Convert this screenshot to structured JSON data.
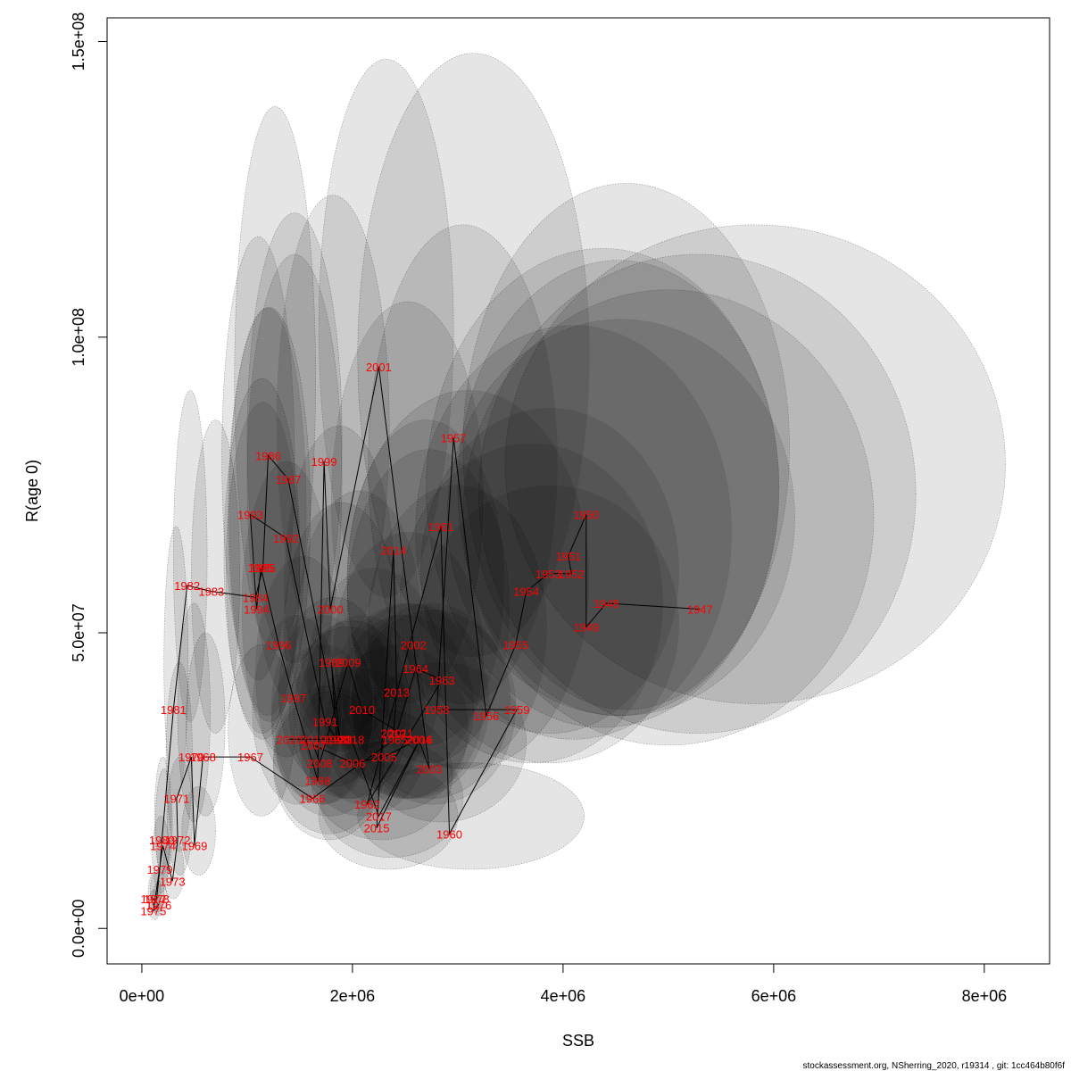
{
  "chart_data": {
    "type": "scatter",
    "xlabel": "SSB",
    "ylabel": "R(age 0)",
    "xlim": [
      -330000,
      8620000
    ],
    "ylim": [
      -6000000,
      154000000
    ],
    "x_ticks": [
      {
        "value": 0,
        "label": "0e+00"
      },
      {
        "value": 2000000,
        "label": "2e+06"
      },
      {
        "value": 4000000,
        "label": "4e+06"
      },
      {
        "value": 6000000,
        "label": "6e+06"
      },
      {
        "value": 8000000,
        "label": "8e+06"
      }
    ],
    "y_ticks": [
      {
        "value": 0,
        "label": "0.0e+00"
      },
      {
        "value": 50000000,
        "label": "5.0e+07"
      },
      {
        "value": 100000000,
        "label": "1.0e+08"
      },
      {
        "value": 150000000,
        "label": "1.5e+08"
      }
    ],
    "colors": {
      "point_label": "#ff0000",
      "trajectory": "#000000",
      "ellipse_fill": "#000000",
      "ellipse_stroke": "#555555"
    },
    "ellipse_opacity": 0.1,
    "points": [
      {
        "year": "1947",
        "ssb": 5300000,
        "r": 54000000,
        "ssb_lo": 3450000,
        "ssb_hi": 8200000,
        "r_lo": 38000000,
        "r_hi": 119000000
      },
      {
        "year": "1948",
        "ssb": 4410000,
        "r": 55000000,
        "ssb_lo": 3200000,
        "ssb_hi": 7350000,
        "r_lo": 33000000,
        "r_hi": 114000000
      },
      {
        "year": "1949",
        "ssb": 4220000,
        "r": 51000000,
        "ssb_lo": 3050000,
        "ssb_hi": 6950000,
        "r_lo": 31000000,
        "r_hi": 108000000
      },
      {
        "year": "1950",
        "ssb": 4220000,
        "r": 70000000,
        "ssb_lo": 3050000,
        "ssb_hi": 6150000,
        "r_lo": 37000000,
        "r_hi": 126000000
      },
      {
        "year": "1951",
        "ssb": 4050000,
        "r": 63000000,
        "ssb_lo": 3000000,
        "ssb_hi": 6050000,
        "r_lo": 36000000,
        "r_hi": 113000000
      },
      {
        "year": "1952",
        "ssb": 4080000,
        "r": 60000000,
        "ssb_lo": 2900000,
        "ssb_hi": 6200000,
        "r_lo": 36000000,
        "r_hi": 103000000
      },
      {
        "year": "1953",
        "ssb": 3860000,
        "r": 60000000,
        "ssb_lo": 2700000,
        "ssb_hi": 6050000,
        "r_lo": 34000000,
        "r_hi": 115000000
      },
      {
        "year": "1954",
        "ssb": 3650000,
        "r": 57000000,
        "ssb_lo": 2600000,
        "ssb_hi": 5600000,
        "r_lo": 32000000,
        "r_hi": 102000000
      },
      {
        "year": "1955",
        "ssb": 3550000,
        "r": 48000000,
        "ssb_lo": 2650000,
        "ssb_hi": 5100000,
        "r_lo": 33000000,
        "r_hi": 88000000
      },
      {
        "year": "1956",
        "ssb": 3270000,
        "r": 36000000,
        "ssb_lo": 2450000,
        "ssb_hi": 4950000,
        "r_lo": 28000000,
        "r_hi": 82000000
      },
      {
        "year": "1957",
        "ssb": 2960000,
        "r": 83000000,
        "ssb_lo": 2050000,
        "ssb_hi": 4250000,
        "r_lo": 46000000,
        "r_hi": 148000000
      },
      {
        "year": "1958",
        "ssb": 2800000,
        "r": 37000000,
        "ssb_lo": 1950000,
        "ssb_hi": 4250000,
        "r_lo": 27000000,
        "r_hi": 91000000
      },
      {
        "year": "1959",
        "ssb": 3560000,
        "r": 37000000,
        "ssb_lo": 2650000,
        "ssb_hi": 5100000,
        "r_lo": 28000000,
        "r_hi": 75000000
      },
      {
        "year": "1960",
        "ssb": 2920000,
        "r": 16000000,
        "ssb_lo": 2050000,
        "ssb_hi": 4200000,
        "r_lo": 10000000,
        "r_hi": 28000000
      },
      {
        "year": "1961",
        "ssb": 2840000,
        "r": 68000000,
        "ssb_lo": 2150000,
        "ssb_hi": 3950000,
        "r_lo": 38000000,
        "r_hi": 119000000
      },
      {
        "year": "1962",
        "ssb": 2140000,
        "r": 21000000,
        "ssb_lo": 1600000,
        "ssb_hi": 2950000,
        "r_lo": 15000000,
        "r_hi": 37000000
      },
      {
        "year": "1963",
        "ssb": 2850000,
        "r": 42000000,
        "ssb_lo": 2150000,
        "ssb_hi": 3850000,
        "r_lo": 27000000,
        "r_hi": 75000000
      },
      {
        "year": "1964",
        "ssb": 2600000,
        "r": 44000000,
        "ssb_lo": 1950000,
        "ssb_hi": 3500000,
        "r_lo": 28000000,
        "r_hi": 81000000
      },
      {
        "year": "1965",
        "ssb": 2400000,
        "r": 32000000,
        "ssb_lo": 1850000,
        "ssb_hi": 3150000,
        "r_lo": 22000000,
        "r_hi": 53000000
      },
      {
        "year": "1966",
        "ssb": 1620000,
        "r": 22000000,
        "ssb_lo": 1250000,
        "ssb_hi": 2300000,
        "r_lo": 15000000,
        "r_hi": 40000000
      },
      {
        "year": "1967",
        "ssb": 1030000,
        "r": 29000000,
        "ssb_lo": 820000,
        "ssb_hi": 1450000,
        "r_lo": 19000000,
        "r_hi": 48000000
      },
      {
        "year": "1968",
        "ssb": 580000,
        "r": 29000000,
        "ssb_lo": 420000,
        "ssb_hi": 790000,
        "r_lo": 19000000,
        "r_hi": 50000000
      },
      {
        "year": "1969",
        "ssb": 500000,
        "r": 14000000,
        "ssb_lo": 380000,
        "ssb_hi": 700000,
        "r_lo": 9000000,
        "r_hi": 24000000
      },
      {
        "year": "1970",
        "ssb": 470000,
        "r": 29000000,
        "ssb_lo": 340000,
        "ssb_hi": 650000,
        "r_lo": 18000000,
        "r_hi": 55000000
      },
      {
        "year": "1971",
        "ssb": 330000,
        "r": 22000000,
        "ssb_lo": 230000,
        "ssb_hi": 480000,
        "r_lo": 13000000,
        "r_hi": 45000000
      },
      {
        "year": "1972",
        "ssb": 340000,
        "r": 15000000,
        "ssb_lo": 240000,
        "ssb_hi": 480000,
        "r_lo": 9000000,
        "r_hi": 29000000
      },
      {
        "year": "1973",
        "ssb": 290000,
        "r": 8000000,
        "ssb_lo": 200000,
        "ssb_hi": 400000,
        "r_lo": 5000000,
        "r_hi": 15000000
      },
      {
        "year": "1974",
        "ssb": 200000,
        "r": 14000000,
        "ssb_lo": 130000,
        "ssb_hi": 290000,
        "r_lo": 8000000,
        "r_hi": 27000000
      },
      {
        "year": "1975",
        "ssb": 110000,
        "r": 3000000,
        "ssb_lo": 60000,
        "ssb_hi": 180000,
        "r_lo": 1500000,
        "r_hi": 6500000
      },
      {
        "year": "1976",
        "ssb": 160000,
        "r": 4000000,
        "ssb_lo": 100000,
        "ssb_hi": 240000,
        "r_lo": 2200000,
        "r_hi": 8000000
      },
      {
        "year": "1977",
        "ssb": 110000,
        "r": 5000000,
        "ssb_lo": 60000,
        "ssb_hi": 180000,
        "r_lo": 2600000,
        "r_hi": 9500000
      },
      {
        "year": "1978",
        "ssb": 140000,
        "r": 5000000,
        "ssb_lo": 80000,
        "ssb_hi": 210000,
        "r_lo": 2800000,
        "r_hi": 10000000
      },
      {
        "year": "1979",
        "ssb": 170000,
        "r": 10000000,
        "ssb_lo": 100000,
        "ssb_hi": 260000,
        "r_lo": 6000000,
        "r_hi": 19000000
      },
      {
        "year": "1980",
        "ssb": 190000,
        "r": 15000000,
        "ssb_lo": 120000,
        "ssb_hi": 280000,
        "r_lo": 9000000,
        "r_hi": 29000000
      },
      {
        "year": "1981",
        "ssb": 300000,
        "r": 37000000,
        "ssb_lo": 210000,
        "ssb_hi": 440000,
        "r_lo": 22000000,
        "r_hi": 68000000
      },
      {
        "year": "1982",
        "ssb": 430000,
        "r": 58000000,
        "ssb_lo": 300000,
        "ssb_hi": 620000,
        "r_lo": 35000000,
        "r_hi": 91000000
      },
      {
        "year": "1983",
        "ssb": 660000,
        "r": 57000000,
        "ssb_lo": 470000,
        "ssb_hi": 930000,
        "r_lo": 33000000,
        "r_hi": 86000000
      },
      {
        "year": "1984",
        "ssb": 1080000,
        "r": 56000000,
        "ssb_lo": 780000,
        "ssb_hi": 1500000,
        "r_lo": 33000000,
        "r_hi": 93000000
      },
      {
        "year": "1985",
        "ssb": 1150000,
        "r": 61000000,
        "ssb_lo": 820000,
        "ssb_hi": 1600000,
        "r_lo": 35000000,
        "r_hi": 105000000
      },
      {
        "year": "1986",
        "ssb": 1200000,
        "r": 80000000,
        "ssb_lo": 880000,
        "ssb_hi": 1650000,
        "r_lo": 47000000,
        "r_hi": 139000000
      },
      {
        "year": "1987",
        "ssb": 1390000,
        "r": 76000000,
        "ssb_lo": 1000000,
        "ssb_hi": 1900000,
        "r_lo": 45000000,
        "r_hi": 121000000
      },
      {
        "year": "1988",
        "ssb": 1880000,
        "r": 32000000,
        "ssb_lo": 1450000,
        "ssb_hi": 2550000,
        "r_lo": 22000000,
        "r_hi": 52000000
      },
      {
        "year": "1989",
        "ssb": 1800000,
        "r": 45000000,
        "ssb_lo": 1350000,
        "ssb_hi": 2450000,
        "r_lo": 30000000,
        "r_hi": 72000000
      },
      {
        "year": "1990",
        "ssb": 1850000,
        "r": 32000000,
        "ssb_lo": 1400000,
        "ssb_hi": 2500000,
        "r_lo": 22000000,
        "r_hi": 51000000
      },
      {
        "year": "1991",
        "ssb": 1740000,
        "r": 35000000,
        "ssb_lo": 1300000,
        "ssb_hi": 2350000,
        "r_lo": 24000000,
        "r_hi": 56000000
      },
      {
        "year": "1992",
        "ssb": 1370000,
        "r": 66000000,
        "ssb_lo": 1000000,
        "ssb_hi": 1900000,
        "r_lo": 38000000,
        "r_hi": 114000000
      },
      {
        "year": "1993",
        "ssb": 1030000,
        "r": 70000000,
        "ssb_lo": 760000,
        "ssb_hi": 1450000,
        "r_lo": 42000000,
        "r_hi": 117000000
      },
      {
        "year": "1994",
        "ssb": 1090000,
        "r": 54000000,
        "ssb_lo": 800000,
        "ssb_hi": 1500000,
        "r_lo": 32000000,
        "r_hi": 89000000
      },
      {
        "year": "1995",
        "ssb": 1130000,
        "r": 61000000,
        "ssb_lo": 830000,
        "ssb_hi": 1560000,
        "r_lo": 36000000,
        "r_hi": 105000000
      },
      {
        "year": "1996",
        "ssb": 1300000,
        "r": 48000000,
        "ssb_lo": 950000,
        "ssb_hi": 1800000,
        "r_lo": 29000000,
        "r_hi": 79000000
      },
      {
        "year": "1997",
        "ssb": 1440000,
        "r": 39000000,
        "ssb_lo": 1080000,
        "ssb_hi": 1980000,
        "r_lo": 24000000,
        "r_hi": 63000000
      },
      {
        "year": "1998",
        "ssb": 1670000,
        "r": 25000000,
        "ssb_lo": 1250000,
        "ssb_hi": 2300000,
        "r_lo": 16000000,
        "r_hi": 41000000
      },
      {
        "year": "1999",
        "ssb": 1730000,
        "r": 79000000,
        "ssb_lo": 1280000,
        "ssb_hi": 2350000,
        "r_lo": 46000000,
        "r_hi": 124000000
      },
      {
        "year": "2000",
        "ssb": 1790000,
        "r": 54000000,
        "ssb_lo": 1350000,
        "ssb_hi": 2400000,
        "r_lo": 31000000,
        "r_hi": 85000000
      },
      {
        "year": "2001",
        "ssb": 2250000,
        "r": 95000000,
        "ssb_lo": 1680000,
        "ssb_hi": 2960000,
        "r_lo": 56000000,
        "r_hi": 147000000
      },
      {
        "year": "2002",
        "ssb": 2580000,
        "r": 48000000,
        "ssb_lo": 1950000,
        "ssb_hi": 3450000,
        "r_lo": 31000000,
        "r_hi": 86000000
      },
      {
        "year": "2003",
        "ssb": 2730000,
        "r": 27000000,
        "ssb_lo": 2050000,
        "ssb_hi": 3650000,
        "r_lo": 18000000,
        "r_hi": 45000000
      },
      {
        "year": "2004",
        "ssb": 2630000,
        "r": 32000000,
        "ssb_lo": 2000000,
        "ssb_hi": 3500000,
        "r_lo": 22000000,
        "r_hi": 55000000
      },
      {
        "year": "2005",
        "ssb": 2300000,
        "r": 29000000,
        "ssb_lo": 1740000,
        "ssb_hi": 3100000,
        "r_lo": 20000000,
        "r_hi": 48000000
      },
      {
        "year": "2006",
        "ssb": 2000000,
        "r": 28000000,
        "ssb_lo": 1500000,
        "ssb_hi": 2700000,
        "r_lo": 19000000,
        "r_hi": 44000000
      },
      {
        "year": "2007",
        "ssb": 1630000,
        "r": 31000000,
        "ssb_lo": 1230000,
        "ssb_hi": 2200000,
        "r_lo": 21000000,
        "r_hi": 48000000
      },
      {
        "year": "2008",
        "ssb": 1690000,
        "r": 28000000,
        "ssb_lo": 1270000,
        "ssb_hi": 2300000,
        "r_lo": 19000000,
        "r_hi": 45000000
      },
      {
        "year": "2009",
        "ssb": 1960000,
        "r": 45000000,
        "ssb_lo": 1480000,
        "ssb_hi": 2650000,
        "r_lo": 30000000,
        "r_hi": 74000000
      },
      {
        "year": "2010",
        "ssb": 2090000,
        "r": 37000000,
        "ssb_lo": 1570000,
        "ssb_hi": 2850000,
        "r_lo": 25000000,
        "r_hi": 61000000
      },
      {
        "year": "2011",
        "ssb": 2460000,
        "r": 33000000,
        "ssb_lo": 1850000,
        "ssb_hi": 3300000,
        "r_lo": 22000000,
        "r_hi": 55000000
      },
      {
        "year": "2012",
        "ssb": 2390000,
        "r": 33000000,
        "ssb_lo": 1800000,
        "ssb_hi": 3250000,
        "r_lo": 22000000,
        "r_hi": 55000000
      },
      {
        "year": "2013",
        "ssb": 2420000,
        "r": 40000000,
        "ssb_lo": 1820000,
        "ssb_hi": 3250000,
        "r_lo": 26000000,
        "r_hi": 67000000
      },
      {
        "year": "2014",
        "ssb": 2390000,
        "r": 64000000,
        "ssb_lo": 1800000,
        "ssb_hi": 3250000,
        "r_lo": 38000000,
        "r_hi": 106000000
      },
      {
        "year": "2015",
        "ssb": 2230000,
        "r": 17000000,
        "ssb_lo": 1680000,
        "ssb_hi": 3000000,
        "r_lo": 10000000,
        "r_hi": 28000000
      },
      {
        "year": "2016",
        "ssb": 2640000,
        "r": 32000000,
        "ssb_lo": 1980000,
        "ssb_hi": 3550000,
        "r_lo": 21000000,
        "r_hi": 54000000
      },
      {
        "year": "2017",
        "ssb": 2250000,
        "r": 19000000,
        "ssb_lo": 1690000,
        "ssb_hi": 3050000,
        "r_lo": 12000000,
        "r_hi": 32000000
      },
      {
        "year": "2018",
        "ssb": 1990000,
        "r": 32000000,
        "ssb_lo": 1500000,
        "ssb_hi": 2700000,
        "r_lo": 21000000,
        "r_hi": 53000000
      },
      {
        "year": "2019",
        "ssb": 1630000,
        "r": 32000000,
        "ssb_lo": 1230000,
        "ssb_hi": 2200000,
        "r_lo": 21000000,
        "r_hi": 53000000
      },
      {
        "year": "2020",
        "ssb": 1400000,
        "r": 32000000,
        "ssb_lo": 1050000,
        "ssb_hi": 1900000,
        "r_lo": 21000000,
        "r_hi": 53000000
      }
    ]
  },
  "footer": "stockassessment.org, NSherring_2020, r19314 , git: 1cc464b80f6f"
}
